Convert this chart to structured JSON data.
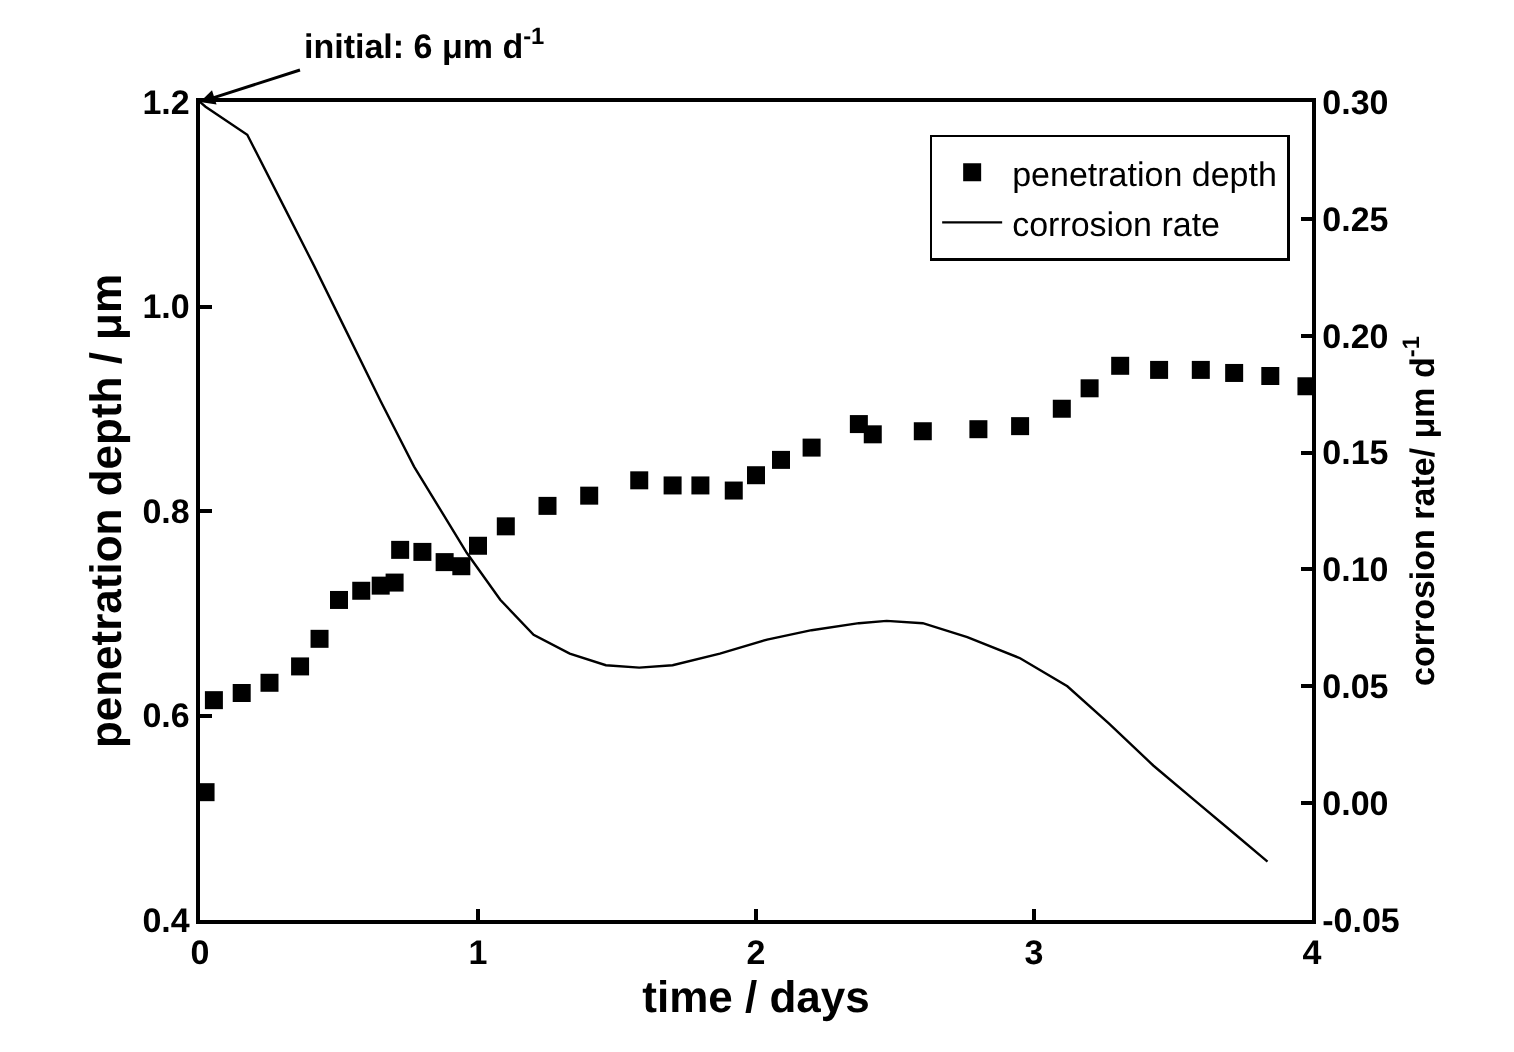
{
  "chart_data": {
    "type": "scatter",
    "xlabel": "time / days",
    "ylabel": "penetration depth / μm",
    "y2label": "corrosion rate/ μm d$^{-1}$",
    "xlim": [
      0,
      4
    ],
    "xticks": [
      0,
      1,
      2,
      3,
      4
    ],
    "ylim": [
      0.4,
      1.2
    ],
    "yticks": [
      0.4,
      0.6,
      0.8,
      {
        "value": 1.0,
        "label": "1.0"
      },
      1.2
    ],
    "y2lim": [
      -0.05,
      0.3
    ],
    "y2ticks": [
      -0.05,
      {
        "value": 0,
        "label": "0.00"
      },
      0.05,
      {
        "value": 0.1,
        "label": "0.10"
      },
      0.15,
      {
        "value": 0.2,
        "label": "0.20"
      },
      0.25,
      {
        "value": 0.3,
        "label": "0.30"
      }
    ],
    "legend": "top right",
    "annotations": [
      {
        "text": "initial: 6 μm d$^{-1}$",
        "x": 0,
        "y": 1.2
      }
    ],
    "series": [
      {
        "name": "penetration depth",
        "marker": "square",
        "color": "#000000",
        "x": [
          0.02,
          0.05,
          0.15,
          0.25,
          0.36,
          0.43,
          0.5,
          0.58,
          0.65,
          0.7,
          0.72,
          0.8,
          0.88,
          0.94,
          1.0,
          1.1,
          1.25,
          1.4,
          1.58,
          1.7,
          1.8,
          1.92,
          2.0,
          2.09,
          2.2,
          2.37,
          2.42,
          2.6,
          2.8,
          2.95,
          3.1,
          3.2,
          3.31,
          3.45,
          3.6,
          3.72,
          3.85,
          3.98
        ],
        "values": [
          0.525,
          0.615,
          0.622,
          0.632,
          0.648,
          0.675,
          0.713,
          0.722,
          0.727,
          0.73,
          0.762,
          0.76,
          0.75,
          0.746,
          0.766,
          0.785,
          0.805,
          0.815,
          0.83,
          0.825,
          0.825,
          0.82,
          0.835,
          0.85,
          0.862,
          0.885,
          0.875,
          0.878,
          0.88,
          0.883,
          0.9,
          0.92,
          0.942,
          0.938,
          0.938,
          0.935,
          0.932,
          0.922
        ]
      },
      {
        "name": "corrosion rate",
        "type": "line",
        "marker": "none",
        "line_style": "solid",
        "axis": "y2",
        "color": "#000000",
        "x": [
          0.0,
          0.02,
          0.17,
          0.29,
          0.41,
          0.53,
          0.65,
          0.77,
          0.96,
          1.08,
          1.2,
          1.33,
          1.46,
          1.58,
          1.7,
          1.87,
          2.04,
          2.2,
          2.37,
          2.47,
          2.6,
          2.76,
          2.95,
          3.12,
          3.27,
          3.43,
          3.58,
          3.72,
          3.84
        ],
        "values": [
          0.3,
          0.298,
          0.286,
          0.258,
          0.23,
          0.201,
          0.172,
          0.144,
          0.107,
          0.087,
          0.072,
          0.064,
          0.059,
          0.058,
          0.059,
          0.064,
          0.07,
          0.074,
          0.077,
          0.078,
          0.077,
          0.071,
          0.062,
          0.05,
          0.034,
          0.016,
          0.001,
          -0.013,
          -0.025
        ]
      }
    ]
  }
}
